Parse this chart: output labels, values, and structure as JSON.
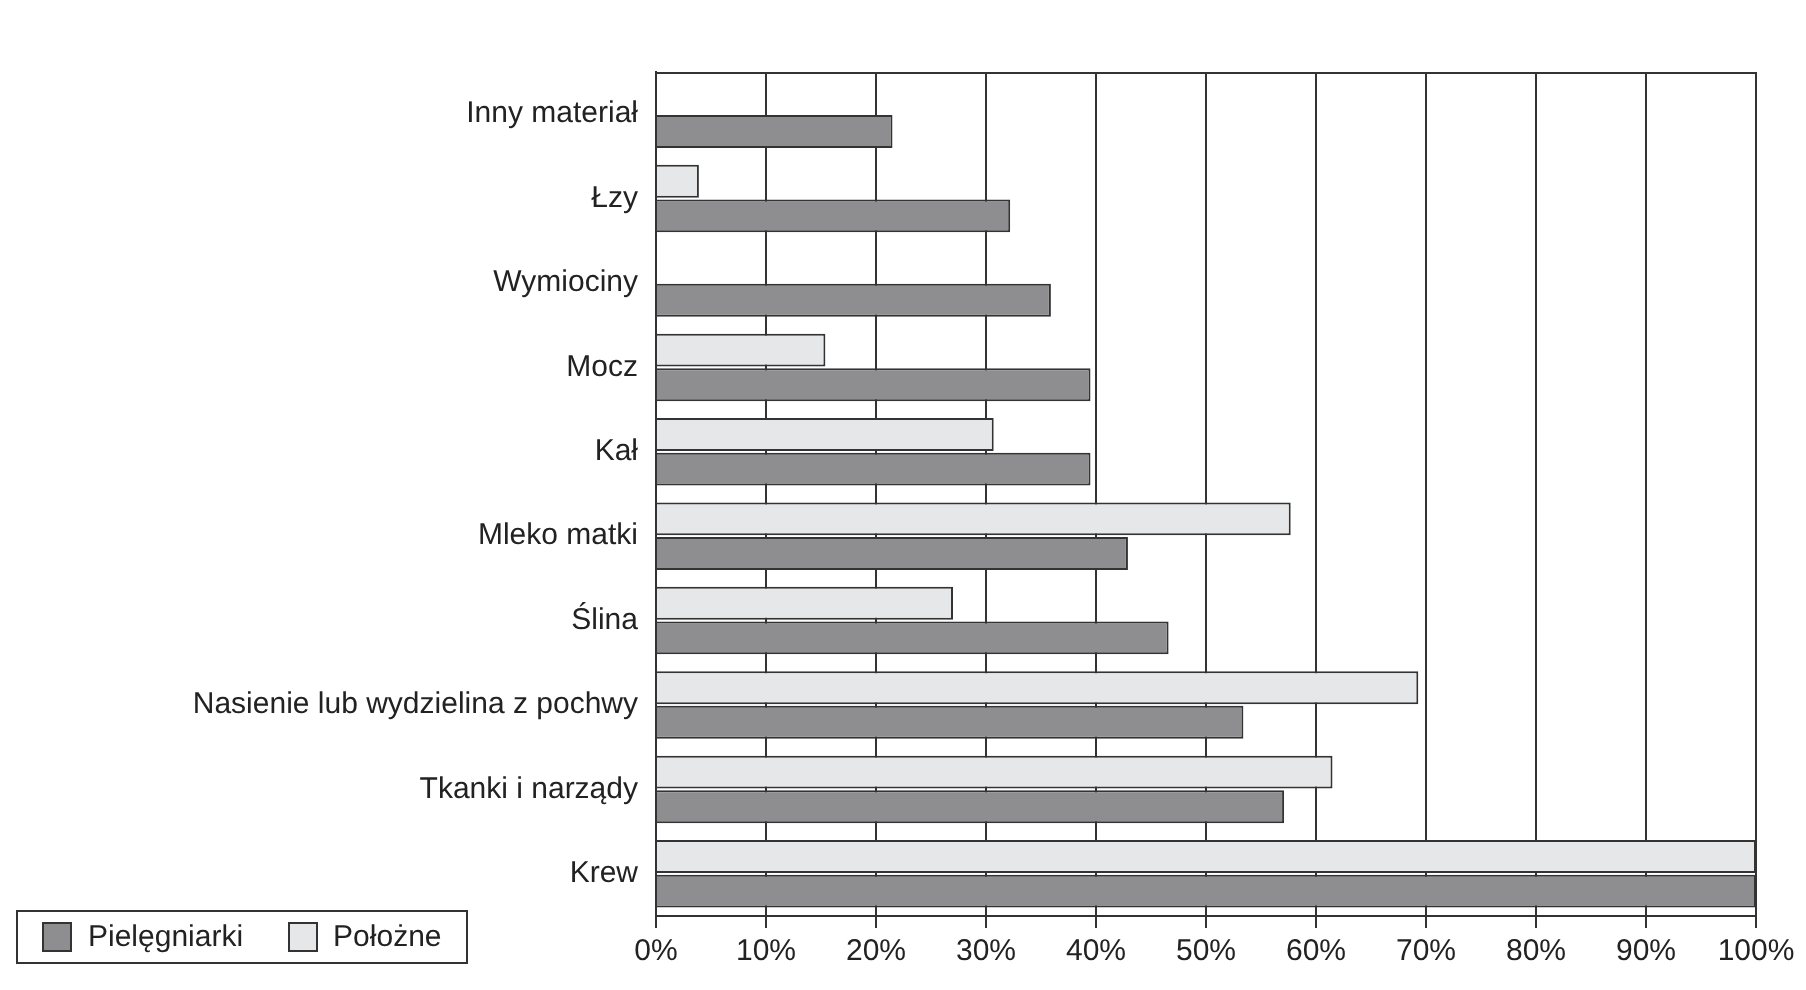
{
  "chart_data": {
    "type": "bar",
    "orientation": "horizontal",
    "categories": [
      "Inny materiał",
      "Łzy",
      "Wymiociny",
      "Mocz",
      "Kał",
      "Mleko matki",
      "Ślina",
      "Nasienie lub wydzielina z pochwy",
      "Tkanki i narządy",
      "Krew"
    ],
    "series": [
      {
        "name": "Pielęgniarki",
        "color": "#8e8e90",
        "values": [
          21.5,
          32.2,
          35.9,
          39.5,
          39.5,
          42.9,
          46.6,
          53.4,
          57.1,
          100
        ]
      },
      {
        "name": "Położne",
        "color": "#e6e7e8",
        "values": [
          null,
          3.9,
          null,
          15.4,
          30.7,
          57.7,
          27.0,
          69.3,
          61.5,
          100
        ]
      }
    ],
    "xlim": [
      0,
      100
    ],
    "xticks": [
      {
        "value": 0,
        "label": "0%"
      },
      {
        "value": 10,
        "label": "10%"
      },
      {
        "value": 20,
        "label": "20%"
      },
      {
        "value": 30,
        "label": "30%"
      },
      {
        "value": 40,
        "label": "40%"
      },
      {
        "value": 50,
        "label": "50%"
      },
      {
        "value": 60,
        "label": "60%"
      },
      {
        "value": 70,
        "label": "70%"
      },
      {
        "value": 80,
        "label": "80%"
      },
      {
        "value": 90,
        "label": "90%"
      },
      {
        "value": 100,
        "label": "100%"
      }
    ],
    "grid": "x",
    "legend": "bottom left"
  }
}
